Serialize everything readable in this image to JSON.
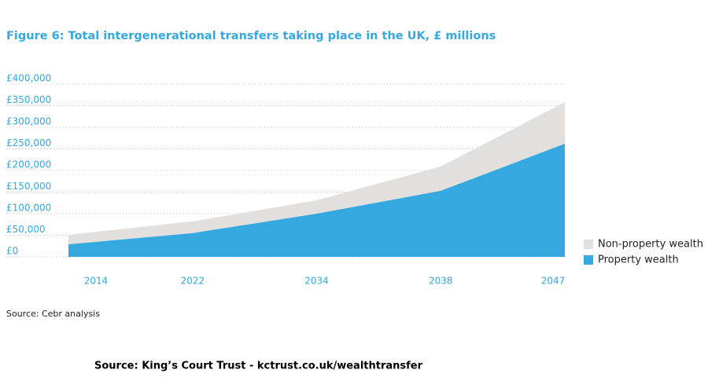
{
  "chart_data": {
    "type": "stacked_area",
    "title": "Figure 6: Total intergenerational transfers taking place in the UK, £ millions",
    "categories": [
      "2014",
      "2022",
      "2034",
      "2038",
      "2047"
    ],
    "series": [
      {
        "name": "Property wealth",
        "color": "#35a8e0",
        "values": [
          29000,
          55000,
          100000,
          153000,
          262000
        ]
      },
      {
        "name": "Non-property wealth",
        "color": "#e3dfdd",
        "values": [
          22000,
          27000,
          31000,
          56000,
          96000
        ]
      }
    ],
    "ylim": [
      0,
      400000
    ],
    "yticks": [
      {
        "value": 0,
        "label": "£0"
      },
      {
        "value": 50000,
        "label": "£50,000"
      },
      {
        "value": 100000,
        "label": "£100,000"
      },
      {
        "value": 150000,
        "label": "£150,000"
      },
      {
        "value": 200000,
        "label": "£200,000"
      },
      {
        "value": 250000,
        "label": "£250,000"
      },
      {
        "value": 300000,
        "label": "£300,000"
      },
      {
        "value": 350000,
        "label": "£350,000"
      },
      {
        "value": 400000,
        "label": "£400,000"
      }
    ],
    "grid": true,
    "legend": "right",
    "note": "Source: Cebr analysis",
    "footer": "Source: King’s Court Trust - kctrust.co.uk/wealthtransfer"
  }
}
